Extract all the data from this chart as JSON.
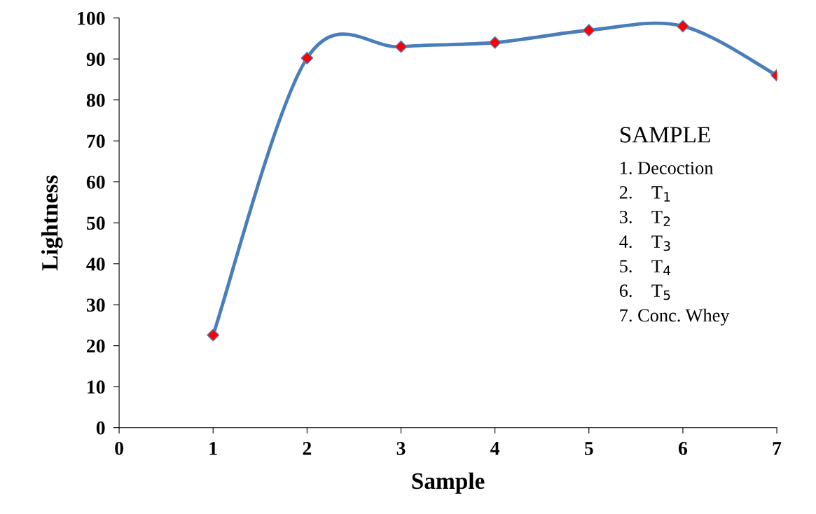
{
  "chart_data": {
    "type": "line",
    "xlabel": "Sample",
    "ylabel": "Lightness",
    "x": [
      1,
      2,
      3,
      4,
      5,
      6,
      7
    ],
    "series": [
      {
        "color": "#4a7ebb",
        "colors": [
          "#ff0000",
          "#ff0000",
          "#ff0000",
          "#ff0000",
          "#ff0000",
          "#ff0000",
          "#ff0000"
        ],
        "values": [
          22.6,
          90.2,
          93,
          94,
          97,
          98,
          86
        ]
      }
    ],
    "xlim": [
      0,
      7
    ],
    "xticks": [
      0,
      1,
      2,
      3,
      4,
      5,
      6,
      7
    ],
    "ylim": [
      0,
      100
    ],
    "yticks": [
      0,
      10,
      20,
      30,
      40,
      50,
      60,
      70,
      80,
      90,
      100
    ],
    "grid": false,
    "marker": "diamond",
    "line_style": "solid",
    "legend": false,
    "annotations": [
      "SAMPLE",
      "1. Decoction",
      "2.    T$_{1}$",
      "3.    T$_{2}$",
      "4.    T$_{3}$",
      "5.    T$_{4}$",
      "6.    T$_{5}$",
      "7. Conc. Whey"
    ]
  }
}
